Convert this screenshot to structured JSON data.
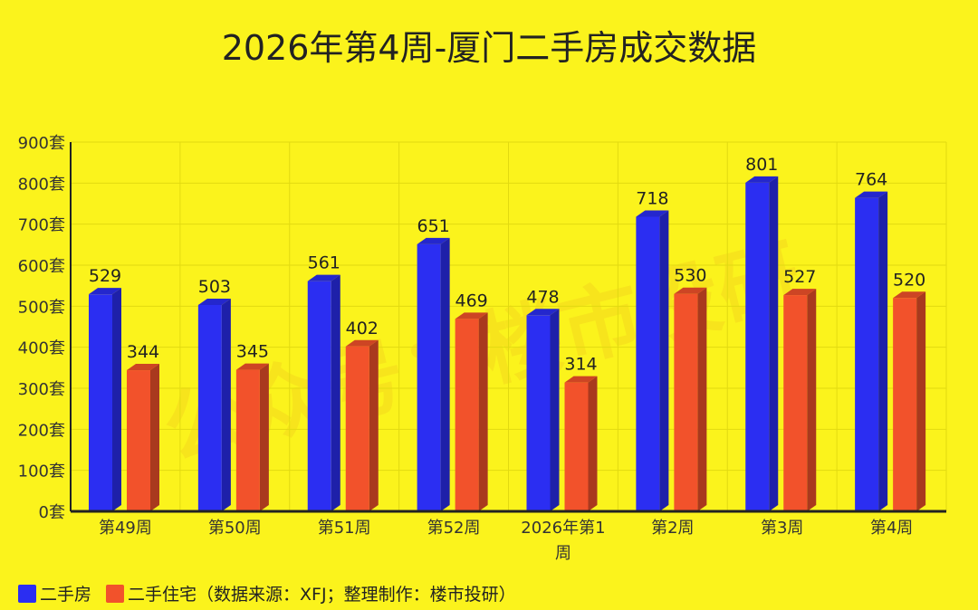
{
  "chart_data": {
    "type": "bar",
    "title": "2026年第4周-厦门二手房成交数据",
    "categories": [
      "第49周",
      "第50周",
      "第51周",
      "第52周",
      "2026年第1周",
      "第2周",
      "第3周",
      "第4周"
    ],
    "series": [
      {
        "name": "二手房",
        "color": "#2b2ef2",
        "values": [
          529,
          503,
          561,
          651,
          478,
          718,
          801,
          764
        ]
      },
      {
        "name": "二手住宅",
        "color": "#f2522b",
        "values": [
          344,
          345,
          402,
          469,
          314,
          530,
          527,
          520
        ]
      }
    ],
    "ylim": [
      0,
      900
    ],
    "yticks": [
      "0套",
      "100套",
      "200套",
      "300套",
      "400套",
      "500套",
      "600套",
      "700套",
      "800套",
      "900套"
    ],
    "grid": true,
    "legend_position": "bottom-left",
    "note": "（数据来源：XFJ；整理制作：楼市投研）"
  },
  "watermark": "公众号：楼市投研"
}
